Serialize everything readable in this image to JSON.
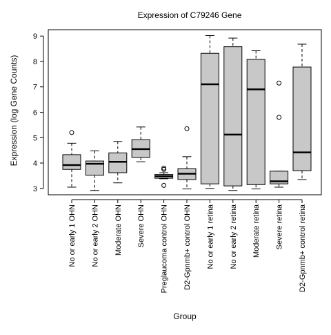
{
  "chart_data": {
    "type": "boxplot",
    "title": "Expression of  C79246 Gene",
    "xlabel": "Group",
    "ylabel": "Expression (log Gene Counts)",
    "ylim": [
      2.75,
      9.25
    ],
    "yticks": [
      3,
      4,
      5,
      6,
      7,
      8,
      9
    ],
    "grid": false,
    "categories": [
      "No or early 1 OHN",
      "No or early 2 OHN",
      "Moderate OHN",
      "Severe OHN",
      "Preglaucoma control OHN",
      "D2-Gpnmb+ control OHN",
      "No or early 1 retina",
      "No or early 2 retina",
      "Moderate retina",
      "Severe retina",
      "D2-Gpnmb+ control retina"
    ],
    "boxes": [
      {
        "min": 3.05,
        "q1": 3.75,
        "median": 3.92,
        "q3": 4.33,
        "max": 4.78,
        "outliers": [
          5.2
        ]
      },
      {
        "min": 2.92,
        "q1": 3.52,
        "median": 3.97,
        "q3": 4.08,
        "max": 4.48,
        "outliers": []
      },
      {
        "min": 3.22,
        "q1": 3.62,
        "median": 4.05,
        "q3": 4.4,
        "max": 4.85,
        "outliers": []
      },
      {
        "min": 4.05,
        "q1": 4.22,
        "median": 4.55,
        "q3": 4.92,
        "max": 5.42,
        "outliers": []
      },
      {
        "min": 3.38,
        "q1": 3.4,
        "median": 3.48,
        "q3": 3.55,
        "max": 3.62,
        "outliers": [
          3.12,
          3.75,
          3.8
        ]
      },
      {
        "min": 2.98,
        "q1": 3.35,
        "median": 3.58,
        "q3": 3.78,
        "max": 4.25,
        "outliers": [
          5.35
        ]
      },
      {
        "min": 3.0,
        "q1": 3.18,
        "median": 7.1,
        "q3": 8.32,
        "max": 9.02,
        "outliers": []
      },
      {
        "min": 2.92,
        "q1": 3.1,
        "median": 5.12,
        "q3": 8.58,
        "max": 8.92,
        "outliers": []
      },
      {
        "min": 2.98,
        "q1": 3.15,
        "median": 6.9,
        "q3": 8.08,
        "max": 8.42,
        "outliers": []
      },
      {
        "min": 3.05,
        "q1": 3.18,
        "median": 3.28,
        "q3": 3.68,
        "max": 3.68,
        "outliers": [
          5.8,
          7.15
        ]
      },
      {
        "min": 3.35,
        "q1": 3.7,
        "median": 4.42,
        "q3": 7.78,
        "max": 8.68,
        "outliers": []
      }
    ],
    "box_fill": "#c8c8c8",
    "line_color": "#000000"
  }
}
